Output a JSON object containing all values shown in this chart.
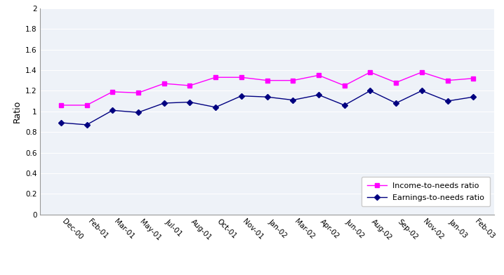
{
  "x_labels": [
    "Dec-00",
    "Feb-01",
    "Mar-01",
    "May-01",
    "Jul-01",
    "Aug-01",
    "Oct-01",
    "Nov-01",
    "Jan-02",
    "Mar-02",
    "Apr-02",
    "Jun-02",
    "Aug-02",
    "Sep-02",
    "Nov-02",
    "Jan-03",
    "Feb-03"
  ],
  "income_to_needs": [
    1.06,
    1.06,
    1.19,
    1.18,
    1.27,
    1.25,
    1.33,
    1.33,
    1.3,
    1.3,
    1.35,
    1.25,
    1.38,
    1.28,
    1.38,
    1.3,
    1.32
  ],
  "earnings_to_needs": [
    0.89,
    0.87,
    1.01,
    0.99,
    1.08,
    1.09,
    1.04,
    1.15,
    1.14,
    1.11,
    1.16,
    1.06,
    1.2,
    1.08,
    1.2,
    1.1,
    1.14
  ],
  "income_color": "#FF00FF",
  "earnings_color": "#000080",
  "ylabel": "Ratio",
  "ylim": [
    0,
    2.0
  ],
  "yticks": [
    0,
    0.2,
    0.4,
    0.6,
    0.8,
    1.0,
    1.2,
    1.4,
    1.6,
    1.8,
    2.0
  ],
  "legend_income": "Income-to-needs ratio",
  "legend_earnings": "Earnings-to-needs ratio",
  "bg_color": "#FFFFFF",
  "plot_bg": "#EEF2F8"
}
